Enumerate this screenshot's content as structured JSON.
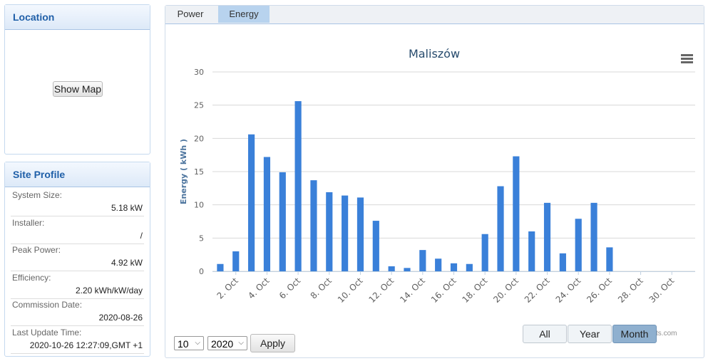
{
  "location": {
    "title": "Location",
    "button": "Show Map"
  },
  "site_profile": {
    "title": "Site Profile",
    "fields": [
      {
        "label": "System Size:",
        "value": "5.18 kW"
      },
      {
        "label": "Installer:",
        "value": "/"
      },
      {
        "label": "Peak Power:",
        "value": "4.92 kW"
      },
      {
        "label": "Efficiency:",
        "value": "2.20 kWh/kW/day"
      },
      {
        "label": "Commission Date:",
        "value": "2020-08-26"
      },
      {
        "label": "Last Update Time:",
        "value": "2020-10-26 12:27:09,GMT +1"
      }
    ]
  },
  "tabs": [
    "Power",
    "Energy"
  ],
  "chart_data": {
    "type": "bar",
    "title": "Maliszów",
    "y_label": "Energy ( kWh )",
    "categories": [
      null,
      "2. Oct",
      null,
      "4. Oct",
      null,
      "6. Oct",
      null,
      "8. Oct",
      null,
      "10. Oct",
      null,
      "12. Oct",
      null,
      "14. Oct",
      null,
      "16. Oct",
      null,
      "18. Oct",
      null,
      "20. Oct",
      null,
      "22. Oct",
      null,
      "24. Oct",
      null,
      "26. Oct",
      null,
      "28. Oct",
      null,
      "30. Oct",
      null
    ],
    "values": [
      1.1,
      3.0,
      20.6,
      17.2,
      14.9,
      25.6,
      13.7,
      11.9,
      11.4,
      11.1,
      7.6,
      0.75,
      0.5,
      3.2,
      1.9,
      1.2,
      1.1,
      5.6,
      12.8,
      17.3,
      6.0,
      10.3,
      2.7,
      7.9,
      10.3,
      3.6,
      null,
      null,
      null,
      null,
      null
    ],
    "color": "#3a80d9",
    "ylim": [
      0,
      30
    ],
    "yticks": [
      0,
      5,
      10,
      15,
      20,
      25,
      30
    ],
    "grid": true
  },
  "controls": {
    "month": "10",
    "year": "2020",
    "apply": "Apply",
    "ranges": [
      "All",
      "Year",
      "Month"
    ]
  },
  "credits": "Highcharts.com"
}
